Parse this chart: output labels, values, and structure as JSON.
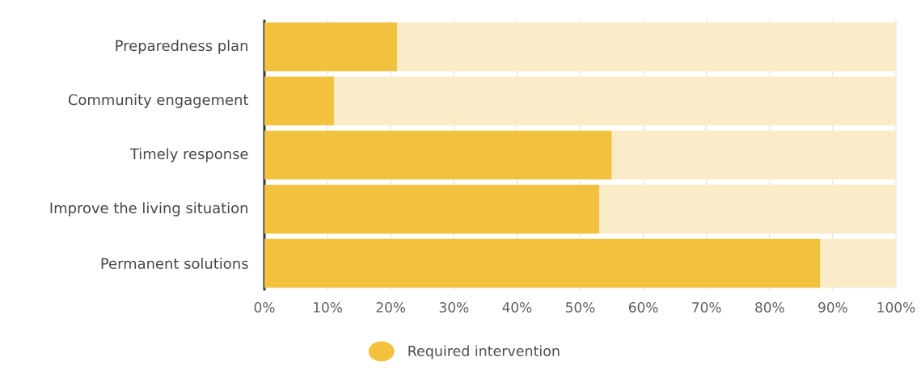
{
  "chart_data": {
    "type": "bar",
    "orientation": "horizontal",
    "stacked": true,
    "categories": [
      "Preparedness plan",
      "Community engagement",
      "Timely response",
      "Improve the living situation",
      "Permanent solutions"
    ],
    "series": [
      {
        "name": "Required intervention",
        "color": "#f2c13e",
        "values": [
          21,
          11,
          55,
          53,
          88
        ]
      },
      {
        "color": "#fbecc9",
        "values": [
          79,
          89,
          45,
          47,
          12
        ]
      }
    ],
    "xlim": [
      0,
      100
    ],
    "xticks": [
      {
        "value": 0,
        "label": "0%"
      },
      {
        "value": 10,
        "label": "10%"
      },
      {
        "value": 20,
        "label": "20%"
      },
      {
        "value": 30,
        "label": "30%"
      },
      {
        "value": 40,
        "label": "40%"
      },
      {
        "value": 50,
        "label": "50%"
      },
      {
        "value": 60,
        "label": "60%"
      },
      {
        "value": 70,
        "label": "70%"
      },
      {
        "value": 80,
        "label": "80%"
      },
      {
        "value": 90,
        "label": "90%"
      },
      {
        "value": 100,
        "label": "100%"
      }
    ],
    "grid": "x",
    "legend": "bottom"
  }
}
